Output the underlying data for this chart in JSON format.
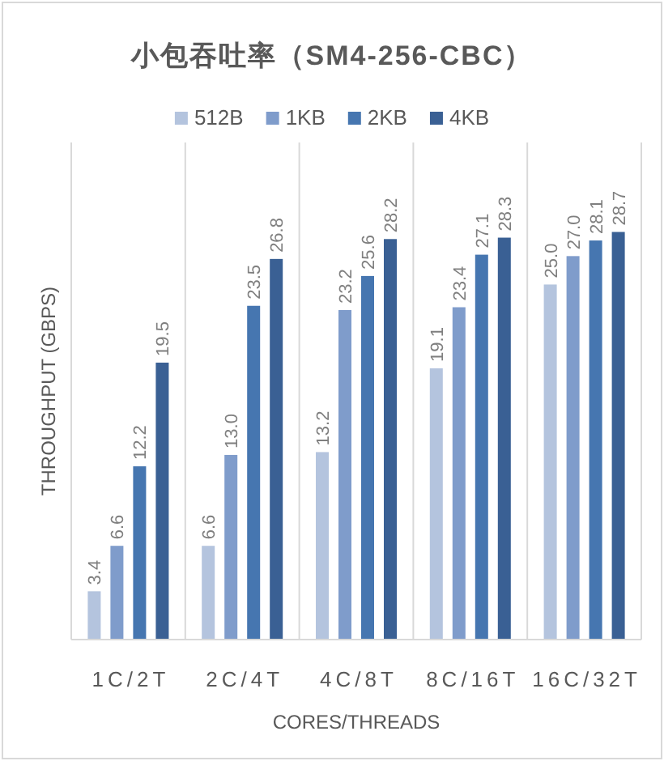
{
  "chart_data": {
    "type": "bar",
    "title": "小包吞吐率（SM4-256-CBC）",
    "xlabel": "CORES/THREADS",
    "ylabel": "THROUGHPUT (GBPS)",
    "categories": [
      "1C/2T",
      "2C/4T",
      "4C/8T",
      "8C/16T",
      "16C/32T"
    ],
    "series": [
      {
        "name": "512B",
        "color": "#b4c4de",
        "values": [
          3.4,
          6.6,
          13.2,
          19.1,
          25.0
        ],
        "value_labels": [
          "3.4",
          "6.6",
          "13.2",
          "19.1",
          "25.0"
        ]
      },
      {
        "name": "1KB",
        "color": "#7f9ccb",
        "values": [
          6.6,
          13.0,
          23.2,
          23.4,
          27.0
        ],
        "value_labels": [
          "6.6",
          "13.0",
          "23.2",
          "23.4",
          "27.0"
        ]
      },
      {
        "name": "2KB",
        "color": "#4676b0",
        "values": [
          12.2,
          23.5,
          25.6,
          27.1,
          28.1
        ],
        "value_labels": [
          "12.2",
          "23.5",
          "25.6",
          "27.1",
          "28.1"
        ]
      },
      {
        "name": "4KB",
        "color": "#3a6094",
        "values": [
          19.5,
          26.8,
          28.2,
          28.3,
          28.7
        ],
        "value_labels": [
          "19.5",
          "26.8",
          "28.2",
          "28.3",
          "28.7"
        ]
      }
    ],
    "ylim": [
      0,
      35
    ],
    "tick_labels": "x",
    "grid": "x",
    "legend": "top"
  }
}
